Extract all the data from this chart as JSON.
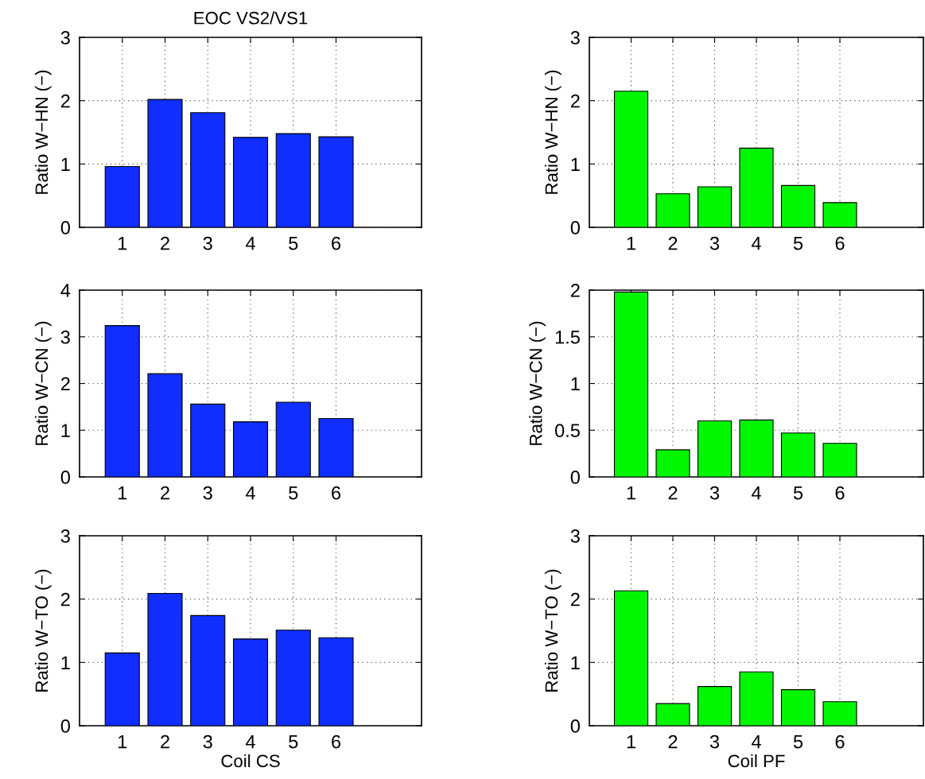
{
  "chart_data": [
    {
      "type": "bar",
      "title": "EOC VS2/VS1",
      "ylabel": "Ratio W−HN (−)",
      "x": [
        1,
        2,
        3,
        4,
        5,
        6
      ],
      "values": [
        0.96,
        2.02,
        1.81,
        1.42,
        1.48,
        1.43
      ],
      "color": "#0f2eff",
      "xlim": [
        0,
        8
      ],
      "xticks": [
        1,
        2,
        3,
        4,
        5,
        6
      ],
      "ylim": [
        0,
        3
      ],
      "yticks": [
        0,
        1,
        2,
        3
      ],
      "grid": true
    },
    {
      "type": "bar",
      "ylabel": "Ratio W−HN (−)",
      "x": [
        1,
        2,
        3,
        4,
        5,
        6
      ],
      "values": [
        2.15,
        0.53,
        0.64,
        1.25,
        0.66,
        0.39
      ],
      "color": "#00f700",
      "xlim": [
        0,
        8
      ],
      "xticks": [
        1,
        2,
        3,
        4,
        5,
        6
      ],
      "ylim": [
        0,
        3
      ],
      "yticks": [
        0,
        1,
        2,
        3
      ],
      "grid": true
    },
    {
      "type": "bar",
      "ylabel": "Ratio W−CN (−)",
      "x": [
        1,
        2,
        3,
        4,
        5,
        6
      ],
      "values": [
        3.24,
        2.21,
        1.56,
        1.18,
        1.6,
        1.25
      ],
      "color": "#0f2eff",
      "xlim": [
        0,
        8
      ],
      "xticks": [
        1,
        2,
        3,
        4,
        5,
        6
      ],
      "ylim": [
        0,
        4
      ],
      "yticks": [
        0,
        1,
        2,
        3,
        4
      ],
      "grid": true
    },
    {
      "type": "bar",
      "ylabel": "Ratio W−CN (−)",
      "x": [
        1,
        2,
        3,
        4,
        5,
        6
      ],
      "values": [
        1.98,
        0.29,
        0.6,
        0.61,
        0.47,
        0.36
      ],
      "color": "#00f700",
      "xlim": [
        0,
        8
      ],
      "xticks": [
        1,
        2,
        3,
        4,
        5,
        6
      ],
      "ylim": [
        0,
        2
      ],
      "yticks": [
        0,
        0.5,
        1,
        1.5,
        2
      ],
      "grid": true
    },
    {
      "type": "bar",
      "xlabel": "Coil CS",
      "ylabel": "Ratio W−TO (−)",
      "x": [
        1,
        2,
        3,
        4,
        5,
        6
      ],
      "values": [
        1.15,
        2.09,
        1.74,
        1.37,
        1.51,
        1.39
      ],
      "color": "#0f2eff",
      "xlim": [
        0,
        8
      ],
      "xticks": [
        1,
        2,
        3,
        4,
        5,
        6
      ],
      "ylim": [
        0,
        3
      ],
      "yticks": [
        0,
        1,
        2,
        3
      ],
      "grid": true
    },
    {
      "type": "bar",
      "xlabel": "Coil PF",
      "ylabel": "Ratio W−TO (−)",
      "x": [
        1,
        2,
        3,
        4,
        5,
        6
      ],
      "values": [
        2.13,
        0.35,
        0.62,
        0.85,
        0.57,
        0.38
      ],
      "color": "#00f700",
      "xlim": [
        0,
        8
      ],
      "xticks": [
        1,
        2,
        3,
        4,
        5,
        6
      ],
      "ylim": [
        0,
        3
      ],
      "yticks": [
        0,
        1,
        2,
        3
      ],
      "grid": true
    }
  ]
}
